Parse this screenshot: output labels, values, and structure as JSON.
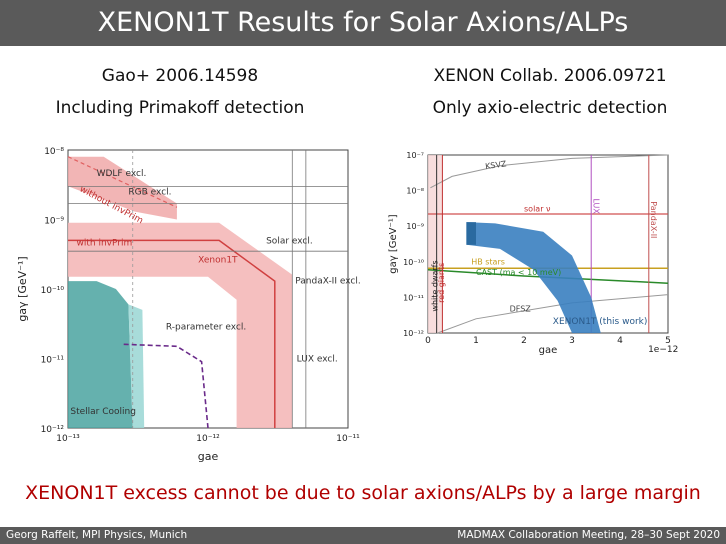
{
  "slide": {
    "title": "XENON1T Results for Solar Axions/ALPs",
    "left_ref": "Gao+ 2006.14598",
    "left_sub": "Including Primakoff detection",
    "right_ref": "XENON Collab. 2006.09721",
    "right_sub": "Only axio-electric detection",
    "conclusion": "XENON1T excess cannot be due to solar axions/ALPs by a large margin",
    "footer_left": "Georg Raffelt, MPI Physics, Munich",
    "footer_right": "MADMAX Collaboration Meeting, 28–30 Sept 2020"
  },
  "chart_data": [
    {
      "type": "area",
      "x_scale": "log",
      "y_scale": "log",
      "xlim": [
        1e-13,
        1e-11
      ],
      "ylim": [
        1e-12,
        1e-08
      ],
      "xlabel": "gae",
      "ylabel": "gaγ [GeV⁻¹]",
      "x_ticks": [
        "10⁻¹³",
        "10⁻¹²",
        "10⁻¹¹"
      ],
      "y_ticks": [
        "10⁻⁸",
        "10⁻⁹",
        "10⁻¹⁰",
        "10⁻¹¹",
        "10⁻¹²"
      ],
      "series": [
        {
          "name": "without invPrim",
          "color": "#e88a8a"
        },
        {
          "name": "with invPrim",
          "color": "#d04040"
        },
        {
          "name": "Xenon1T",
          "color": "#f4b8b8"
        }
      ],
      "annotations": [
        "WDLF excl.",
        "RGB excl.",
        "Solar excl.",
        "PandaX-II excl.",
        "R-parameter excl.",
        "LUX excl.",
        "Stellar Cooling"
      ],
      "colors": {
        "xenon_band": "#f4b8b8",
        "stellar": "#4aa3a0",
        "r_parameter": "#6a2a8a"
      }
    },
    {
      "type": "area",
      "y_scale": "log",
      "xlim": [
        0,
        5
      ],
      "ylim": [
        1e-12,
        1e-07
      ],
      "xlabel": "gae",
      "ylabel": "gaγ [GeV⁻¹]",
      "x_multiplier": "1e−12",
      "x_ticks": [
        "0",
        "1",
        "2",
        "3",
        "4",
        "5"
      ],
      "y_ticks": [
        "10⁻⁷",
        "10⁻⁸",
        "10⁻⁹",
        "10⁻¹⁰",
        "10⁻¹¹",
        "10⁻¹²"
      ],
      "series": [
        {
          "name": "XENON1T (this work)",
          "color": "#3a7fc0"
        }
      ],
      "annotations": [
        "KSVZ",
        "DFSZ",
        "LUX",
        "PandaX-II",
        "solar ν",
        "HB stars",
        "red giants",
        "white dwarfs",
        "CAST (ma < 10 meV)"
      ],
      "colors": {
        "xenon_band": "#3a7fc0",
        "hb": "#c8a020",
        "cast": "#2a8a2a"
      }
    }
  ]
}
